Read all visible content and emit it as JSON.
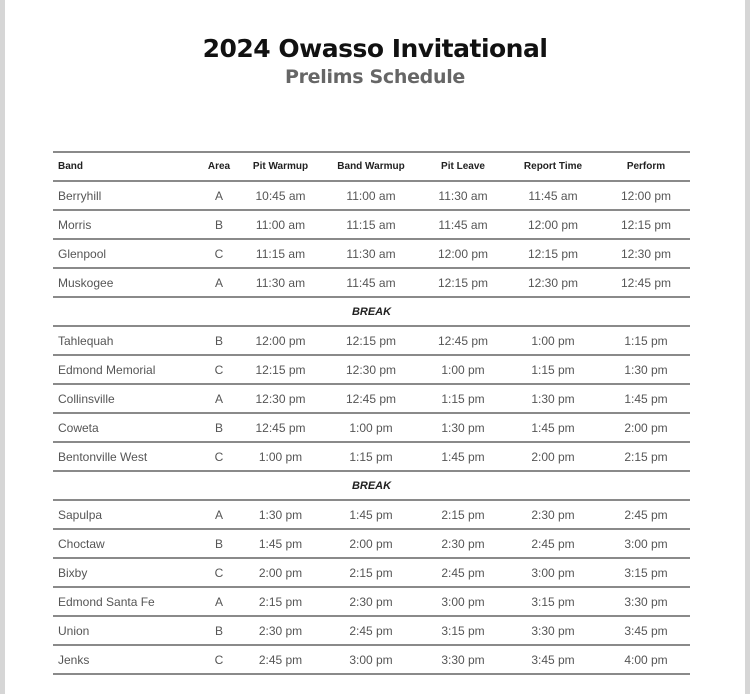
{
  "title": "2024 Owasso Invitational",
  "subtitle": "Prelims Schedule",
  "columns": [
    "Band",
    "Area",
    "Pit Warmup",
    "Band Warmup",
    "Pit Leave",
    "Report Time",
    "Perform"
  ],
  "break_label": "BREAK",
  "groups": [
    [
      [
        "Berryhill",
        "A",
        "10:45 am",
        "11:00 am",
        "11:30 am",
        "11:45 am",
        "12:00 pm"
      ],
      [
        "Morris",
        "B",
        "11:00 am",
        "11:15 am",
        "11:45 am",
        "12:00 pm",
        "12:15 pm"
      ],
      [
        "Glenpool",
        "C",
        "11:15 am",
        "11:30 am",
        "12:00 pm",
        "12:15 pm",
        "12:30 pm"
      ],
      [
        "Muskogee",
        "A",
        "11:30 am",
        "11:45 am",
        "12:15 pm",
        "12:30 pm",
        "12:45 pm"
      ]
    ],
    [
      [
        "Tahlequah",
        "B",
        "12:00 pm",
        "12:15 pm",
        "12:45 pm",
        "1:00 pm",
        "1:15 pm"
      ],
      [
        "Edmond Memorial",
        "C",
        "12:15 pm",
        "12:30 pm",
        "1:00 pm",
        "1:15 pm",
        "1:30 pm"
      ],
      [
        "Collinsville",
        "A",
        "12:30 pm",
        "12:45 pm",
        "1:15 pm",
        "1:30 pm",
        "1:45 pm"
      ],
      [
        "Coweta",
        "B",
        "12:45 pm",
        "1:00 pm",
        "1:30 pm",
        "1:45 pm",
        "2:00 pm"
      ],
      [
        "Bentonville West",
        "C",
        "1:00 pm",
        "1:15 pm",
        "1:45 pm",
        "2:00 pm",
        "2:15 pm"
      ]
    ],
    [
      [
        "Sapulpa",
        "A",
        "1:30 pm",
        "1:45 pm",
        "2:15 pm",
        "2:30 pm",
        "2:45 pm"
      ],
      [
        "Choctaw",
        "B",
        "1:45 pm",
        "2:00 pm",
        "2:30 pm",
        "2:45 pm",
        "3:00 pm"
      ],
      [
        "Bixby",
        "C",
        "2:00 pm",
        "2:15 pm",
        "2:45 pm",
        "3:00 pm",
        "3:15 pm"
      ],
      [
        "Edmond Santa Fe",
        "A",
        "2:15 pm",
        "2:30 pm",
        "3:00 pm",
        "3:15 pm",
        "3:30 pm"
      ],
      [
        "Union",
        "B",
        "2:30 pm",
        "2:45 pm",
        "3:15 pm",
        "3:30 pm",
        "3:45 pm"
      ],
      [
        "Jenks",
        "C",
        "2:45 pm",
        "3:00 pm",
        "3:30 pm",
        "3:45 pm",
        "4:00 pm"
      ]
    ]
  ]
}
